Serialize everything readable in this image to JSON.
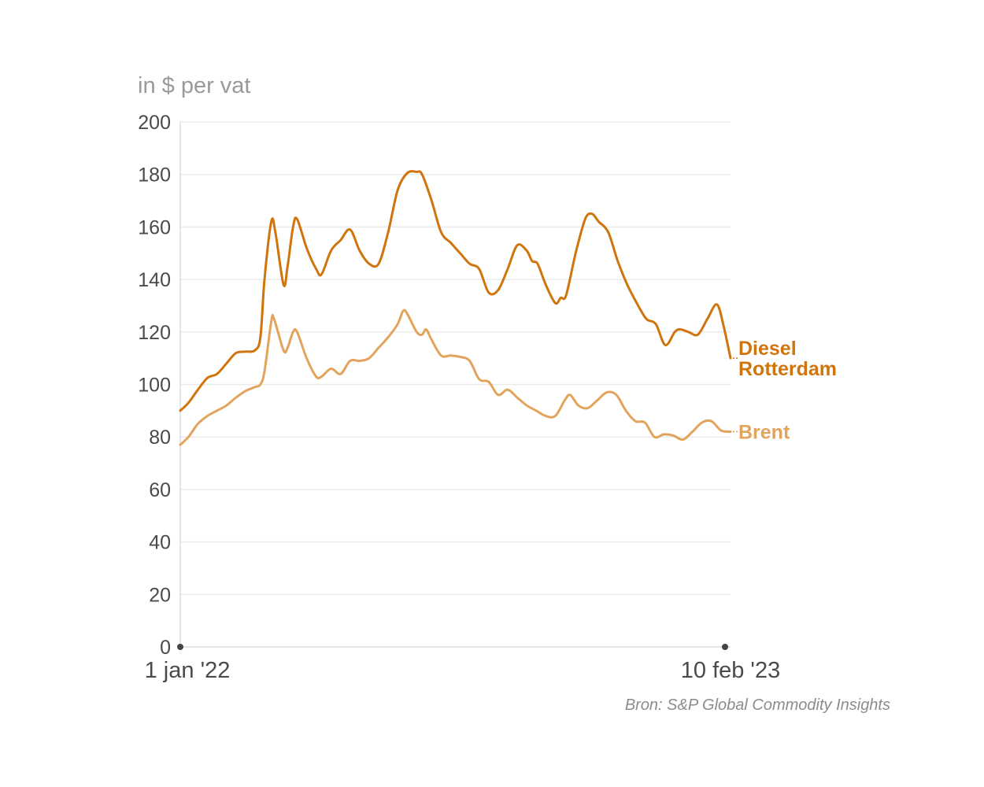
{
  "chart_data": {
    "type": "line",
    "unit_label": "in $ per vat",
    "x_start_label": "1 jan '22",
    "x_end_label": "10 feb '23",
    "x_range": [
      "2022-01-01",
      "2023-02-10"
    ],
    "ylim": [
      0,
      200
    ],
    "yticks": [
      0,
      20,
      40,
      60,
      80,
      100,
      120,
      140,
      160,
      180,
      200
    ],
    "grid": true,
    "source": "Bron: S&P Global Commodity Insights",
    "colors": {
      "diesel": "#d0740e",
      "brent": "#e2a45c",
      "grid": "#ebebeb",
      "axis": "#dcdcdc"
    },
    "series": [
      {
        "name": "Diesel Rotterdam",
        "label_lines": [
          "Diesel",
          "Rotterdam"
        ],
        "color": "#d0740e",
        "points": [
          [
            "2022-01-01",
            90
          ],
          [
            "2022-01-07",
            93
          ],
          [
            "2022-01-14",
            98
          ],
          [
            "2022-01-21",
            102.5
          ],
          [
            "2022-01-28",
            104
          ],
          [
            "2022-02-04",
            108
          ],
          [
            "2022-02-11",
            112
          ],
          [
            "2022-02-18",
            112.5
          ],
          [
            "2022-02-25",
            113
          ],
          [
            "2022-03-01",
            118
          ],
          [
            "2022-03-04",
            140
          ],
          [
            "2022-03-09",
            162
          ],
          [
            "2022-03-12",
            158
          ],
          [
            "2022-03-18",
            138
          ],
          [
            "2022-03-21",
            145
          ],
          [
            "2022-03-25",
            160
          ],
          [
            "2022-03-28",
            163
          ],
          [
            "2022-04-04",
            152
          ],
          [
            "2022-04-11",
            144
          ],
          [
            "2022-04-15",
            142
          ],
          [
            "2022-04-22",
            151
          ],
          [
            "2022-04-29",
            155
          ],
          [
            "2022-05-06",
            159
          ],
          [
            "2022-05-13",
            151
          ],
          [
            "2022-05-20",
            146
          ],
          [
            "2022-05-27",
            146
          ],
          [
            "2022-06-03",
            158
          ],
          [
            "2022-06-10",
            174
          ],
          [
            "2022-06-17",
            180.5
          ],
          [
            "2022-06-24",
            181
          ],
          [
            "2022-06-28",
            180
          ],
          [
            "2022-07-05",
            170
          ],
          [
            "2022-07-12",
            158
          ],
          [
            "2022-07-19",
            154
          ],
          [
            "2022-07-26",
            150
          ],
          [
            "2022-08-02",
            146
          ],
          [
            "2022-08-09",
            144
          ],
          [
            "2022-08-16",
            135
          ],
          [
            "2022-08-23",
            136
          ],
          [
            "2022-08-30",
            144
          ],
          [
            "2022-09-06",
            153
          ],
          [
            "2022-09-13",
            151
          ],
          [
            "2022-09-17",
            147
          ],
          [
            "2022-09-21",
            146
          ],
          [
            "2022-09-27",
            138
          ],
          [
            "2022-10-04",
            131
          ],
          [
            "2022-10-08",
            133
          ],
          [
            "2022-10-12",
            134
          ],
          [
            "2022-10-19",
            150
          ],
          [
            "2022-10-26",
            163
          ],
          [
            "2022-10-31",
            165
          ],
          [
            "2022-11-05",
            162
          ],
          [
            "2022-11-12",
            158
          ],
          [
            "2022-11-19",
            147
          ],
          [
            "2022-11-26",
            138
          ],
          [
            "2022-12-03",
            131
          ],
          [
            "2022-12-10",
            125
          ],
          [
            "2022-12-17",
            123
          ],
          [
            "2022-12-24",
            115
          ],
          [
            "2022-12-31",
            120
          ],
          [
            "2023-01-04",
            121
          ],
          [
            "2023-01-10",
            120
          ],
          [
            "2023-01-17",
            119
          ],
          [
            "2023-01-24",
            125
          ],
          [
            "2023-01-31",
            130.5
          ],
          [
            "2023-02-05",
            122
          ],
          [
            "2023-02-10",
            110
          ]
        ]
      },
      {
        "name": "Brent",
        "label_lines": [
          "Brent"
        ],
        "color": "#e2a45c",
        "points": [
          [
            "2022-01-01",
            77
          ],
          [
            "2022-01-07",
            80
          ],
          [
            "2022-01-14",
            85
          ],
          [
            "2022-01-21",
            88
          ],
          [
            "2022-01-28",
            90
          ],
          [
            "2022-02-04",
            92
          ],
          [
            "2022-02-11",
            95
          ],
          [
            "2022-02-18",
            97.5
          ],
          [
            "2022-02-25",
            99
          ],
          [
            "2022-03-01",
            100
          ],
          [
            "2022-03-04",
            105
          ],
          [
            "2022-03-09",
            124
          ],
          [
            "2022-03-11",
            125
          ],
          [
            "2022-03-18",
            113
          ],
          [
            "2022-03-21",
            114
          ],
          [
            "2022-03-25",
            120
          ],
          [
            "2022-03-28",
            120
          ],
          [
            "2022-04-04",
            110
          ],
          [
            "2022-04-11",
            103
          ],
          [
            "2022-04-15",
            103
          ],
          [
            "2022-04-22",
            106
          ],
          [
            "2022-04-29",
            104
          ],
          [
            "2022-05-06",
            109
          ],
          [
            "2022-05-13",
            109
          ],
          [
            "2022-05-20",
            110
          ],
          [
            "2022-05-27",
            114
          ],
          [
            "2022-06-03",
            118
          ],
          [
            "2022-06-10",
            123
          ],
          [
            "2022-06-14",
            128
          ],
          [
            "2022-06-17",
            127
          ],
          [
            "2022-06-24",
            120
          ],
          [
            "2022-06-28",
            119
          ],
          [
            "2022-07-01",
            121
          ],
          [
            "2022-07-05",
            117
          ],
          [
            "2022-07-12",
            111
          ],
          [
            "2022-07-19",
            111
          ],
          [
            "2022-07-26",
            110.5
          ],
          [
            "2022-08-02",
            109
          ],
          [
            "2022-08-09",
            102
          ],
          [
            "2022-08-16",
            101
          ],
          [
            "2022-08-23",
            96
          ],
          [
            "2022-08-30",
            98
          ],
          [
            "2022-09-06",
            95
          ],
          [
            "2022-09-13",
            92
          ],
          [
            "2022-09-20",
            90
          ],
          [
            "2022-09-27",
            88
          ],
          [
            "2022-10-04",
            88
          ],
          [
            "2022-10-11",
            94
          ],
          [
            "2022-10-15",
            96
          ],
          [
            "2022-10-21",
            92
          ],
          [
            "2022-10-28",
            91
          ],
          [
            "2022-11-04",
            94
          ],
          [
            "2022-11-11",
            97
          ],
          [
            "2022-11-18",
            96
          ],
          [
            "2022-11-25",
            90
          ],
          [
            "2022-12-02",
            86
          ],
          [
            "2022-12-09",
            85.5
          ],
          [
            "2022-12-16",
            80
          ],
          [
            "2022-12-23",
            81
          ],
          [
            "2022-12-30",
            80.5
          ],
          [
            "2023-01-06",
            79
          ],
          [
            "2023-01-13",
            82
          ],
          [
            "2023-01-20",
            85.5
          ],
          [
            "2023-01-27",
            86
          ],
          [
            "2023-02-03",
            82.5
          ],
          [
            "2023-02-10",
            82
          ]
        ]
      }
    ]
  }
}
